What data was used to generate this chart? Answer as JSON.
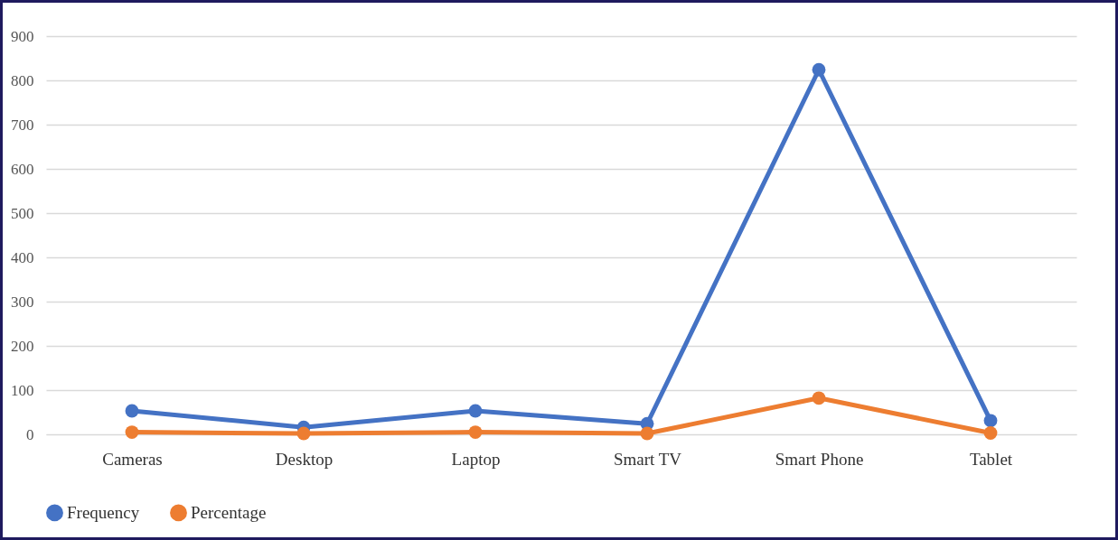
{
  "chart_data": {
    "type": "line",
    "categories": [
      "Cameras",
      "Desktop",
      "Laptop",
      "Smart TV",
      "Smart Phone",
      "Tablet"
    ],
    "series": [
      {
        "name": "Frequency",
        "color": "#4472c4",
        "values": [
          53,
          16,
          53,
          24,
          824,
          31
        ]
      },
      {
        "name": "Percentage",
        "color": "#ed7d31",
        "values": [
          5,
          2,
          5,
          2,
          82,
          3
        ]
      }
    ],
    "ylim": [
      0,
      900
    ],
    "yticks": [
      0,
      100,
      200,
      300,
      400,
      500,
      600,
      700,
      800,
      900
    ],
    "grid": "y",
    "legend": "bottom",
    "marker": "circle",
    "line_style": "solid"
  }
}
